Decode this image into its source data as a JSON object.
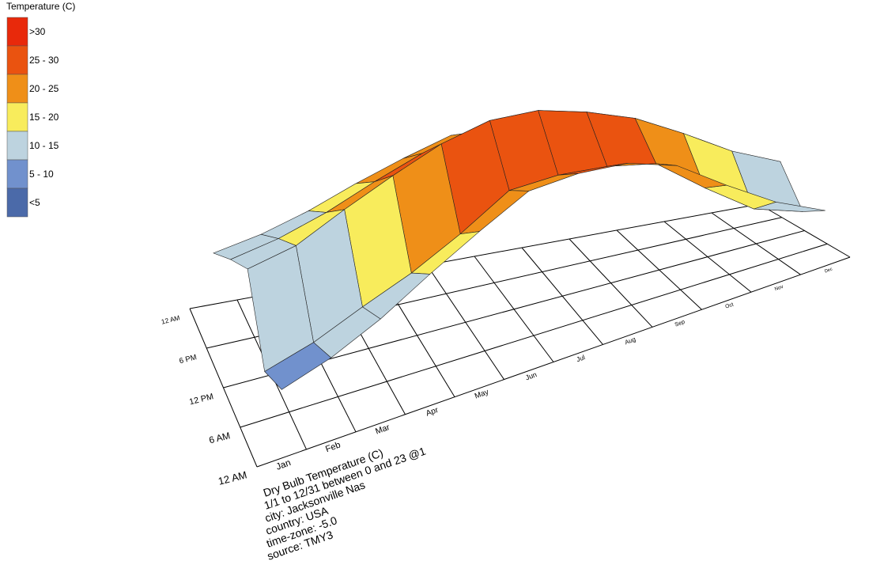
{
  "chart_data": {
    "type": "surface3d",
    "legend_title": "Temperature (C)",
    "legend": [
      {
        "label": ">30",
        "min": 30,
        "color": "#e8290b"
      },
      {
        "label": "25 - 30",
        "min": 25,
        "max": 30,
        "color": "#ea5310"
      },
      {
        "label": "20 - 25",
        "min": 20,
        "max": 25,
        "color": "#ef8f18"
      },
      {
        "label": "15 - 20",
        "min": 15,
        "max": 20,
        "color": "#f8ec5c"
      },
      {
        "label": "10 - 15",
        "min": 10,
        "max": 15,
        "color": "#bdd3df"
      },
      {
        "label": "5 - 10",
        "min": 5,
        "max": 10,
        "color": "#7191cd"
      },
      {
        "label": "<5",
        "max": 5,
        "color": "#4b6aa9"
      }
    ],
    "x_categories": [
      "Jan",
      "Feb",
      "Mar",
      "Apr",
      "May",
      "Jun",
      "Jul",
      "Aug",
      "Sep",
      "Oct",
      "Nov",
      "Dec"
    ],
    "y_categories": [
      "12 AM",
      "6 AM",
      "12 PM",
      "6 PM",
      "12 AM"
    ],
    "values": [
      [
        8,
        6,
        15,
        12,
        8
      ],
      [
        10,
        8,
        17,
        14,
        10
      ],
      [
        13,
        11,
        21,
        17,
        13
      ],
      [
        17,
        14,
        25,
        21,
        17
      ],
      [
        21,
        18,
        29,
        25,
        21
      ],
      [
        25,
        23,
        32,
        28,
        25
      ],
      [
        26,
        24,
        33,
        29,
        26
      ],
      [
        26,
        24,
        32,
        28,
        26
      ],
      [
        24,
        23,
        30,
        26,
        24
      ],
      [
        19,
        17,
        26,
        22,
        19
      ],
      [
        14,
        11,
        21,
        17,
        14
      ],
      [
        10,
        8,
        17,
        13,
        10
      ]
    ],
    "info": [
      "Dry Bulb Temperature (C)",
      "1/1 to 12/31 between 0 and 23 @1",
      "city: Jacksonville Nas",
      "country: USA",
      "time-zone: -5.0",
      "source: TMY3"
    ]
  }
}
